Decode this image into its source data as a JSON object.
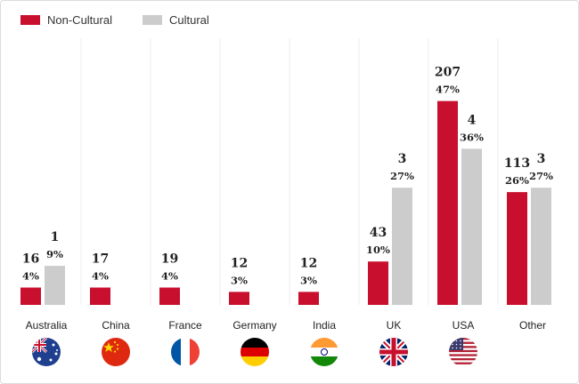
{
  "colors": {
    "non_cultural": "#c8102e",
    "cultural": "#cccccc",
    "divider": "#ececec"
  },
  "chart_data": {
    "type": "bar",
    "title": "",
    "xlabel": "",
    "ylabel": "",
    "ylim": [
      0,
      50
    ],
    "legend_position": "top-left",
    "categories": [
      "Australia",
      "China",
      "France",
      "Germany",
      "India",
      "UK",
      "USA",
      "Other"
    ],
    "series": [
      {
        "name": "Non-Cultural",
        "values": [
          4,
          4,
          4,
          3,
          3,
          10,
          47,
          26
        ],
        "labels": [
          "16",
          "17",
          "19",
          "12",
          "12",
          "43",
          "207",
          "113"
        ],
        "pct_labels": [
          "4%",
          "4%",
          "4%",
          "3%",
          "3%",
          "10%",
          "47%",
          "26%"
        ]
      },
      {
        "name": "Cultural",
        "values": [
          9,
          null,
          null,
          null,
          null,
          27,
          36,
          27
        ],
        "labels": [
          "1",
          "",
          "",
          "",
          "",
          "3",
          "4",
          "3"
        ],
        "pct_labels": [
          "9%",
          "",
          "",
          "",
          "",
          "27%",
          "36%",
          "27%"
        ]
      }
    ]
  },
  "flags": [
    "australia-flag-icon",
    "china-flag-icon",
    "france-flag-icon",
    "germany-flag-icon",
    "india-flag-icon",
    "uk-flag-icon",
    "usa-flag-icon",
    "other-blank"
  ]
}
